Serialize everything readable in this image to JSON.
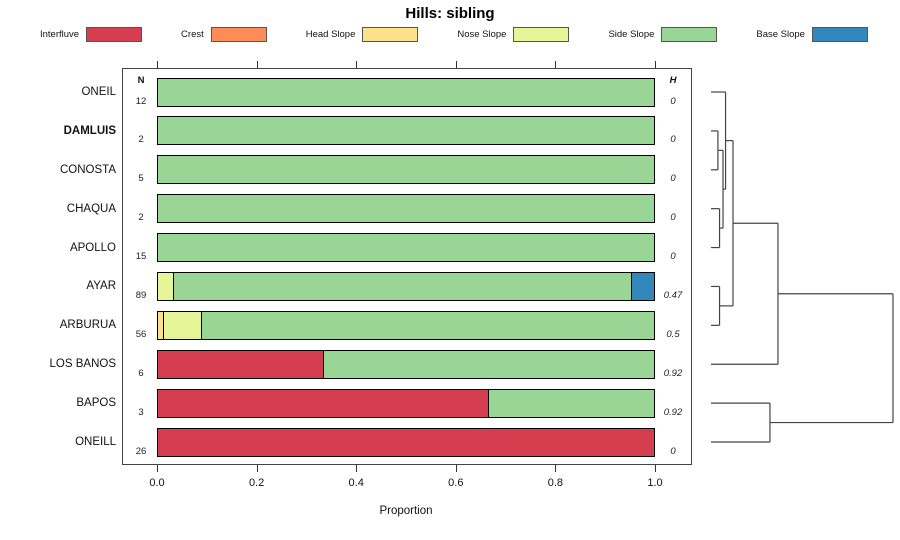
{
  "title": "Hills: sibling",
  "legend": [
    {
      "label": "Interfluve",
      "color": "#D53E4F"
    },
    {
      "label": "Crest",
      "color": "#FC8D59"
    },
    {
      "label": "Head Slope",
      "color": "#FEE08B"
    },
    {
      "label": "Nose Slope",
      "color": "#E6F598"
    },
    {
      "label": "Side Slope",
      "color": "#99D594"
    },
    {
      "label": "Base Slope",
      "color": "#3288BD"
    }
  ],
  "columns": {
    "n_header": "N",
    "h_header": "H"
  },
  "x_axis": {
    "label": "Proportion",
    "ticks": [
      "0.0",
      "0.2",
      "0.4",
      "0.6",
      "0.8",
      "1.0"
    ]
  },
  "chart_data": {
    "type": "bar",
    "subtype": "horizontal-stacked-proportion",
    "title": "Hills: sibling",
    "xlabel": "Proportion",
    "xlim": [
      0,
      1
    ],
    "grid": false,
    "legend_position": "top",
    "series_names": [
      "Interfluve",
      "Crest",
      "Head Slope",
      "Nose Slope",
      "Side Slope",
      "Base Slope"
    ],
    "categories": [
      "ONEIL",
      "DAMLUIS",
      "CONOSTA",
      "CHAQUA",
      "APOLLO",
      "AYAR",
      "ARBURUA",
      "LOS BANOS",
      "BAPOS",
      "ONEILL"
    ],
    "rows": [
      {
        "label": "ONEIL",
        "bold": false,
        "n": 12,
        "h": "0",
        "segments": [
          {
            "name": "Side Slope",
            "value": 1.0
          }
        ]
      },
      {
        "label": "DAMLUIS",
        "bold": true,
        "n": 2,
        "h": "0",
        "segments": [
          {
            "name": "Side Slope",
            "value": 1.0
          }
        ]
      },
      {
        "label": "CONOSTA",
        "bold": false,
        "n": 5,
        "h": "0",
        "segments": [
          {
            "name": "Side Slope",
            "value": 1.0
          }
        ]
      },
      {
        "label": "CHAQUA",
        "bold": false,
        "n": 2,
        "h": "0",
        "segments": [
          {
            "name": "Side Slope",
            "value": 1.0
          }
        ]
      },
      {
        "label": "APOLLO",
        "bold": false,
        "n": 15,
        "h": "0",
        "segments": [
          {
            "name": "Side Slope",
            "value": 1.0
          }
        ]
      },
      {
        "label": "AYAR",
        "bold": false,
        "n": 89,
        "h": "0.47",
        "segments": [
          {
            "name": "Nose Slope",
            "value": 0.032
          },
          {
            "name": "Side Slope",
            "value": 0.923
          },
          {
            "name": "Base Slope",
            "value": 0.045
          }
        ]
      },
      {
        "label": "ARBURUA",
        "bold": false,
        "n": 56,
        "h": "0.5",
        "segments": [
          {
            "name": "Head Slope",
            "value": 0.013
          },
          {
            "name": "Nose Slope",
            "value": 0.075
          },
          {
            "name": "Side Slope",
            "value": 0.912
          }
        ]
      },
      {
        "label": "LOS BANOS",
        "bold": false,
        "n": 6,
        "h": "0.92",
        "segments": [
          {
            "name": "Interfluve",
            "value": 0.334
          },
          {
            "name": "Side Slope",
            "value": 0.666
          }
        ]
      },
      {
        "label": "BAPOS",
        "bold": false,
        "n": 3,
        "h": "0.92",
        "segments": [
          {
            "name": "Interfluve",
            "value": 0.668
          },
          {
            "name": "Side Slope",
            "value": 0.332
          }
        ]
      },
      {
        "label": "ONEILL",
        "bold": false,
        "n": 26,
        "h": "0",
        "segments": [
          {
            "name": "Interfluve",
            "value": 1.0
          }
        ]
      }
    ],
    "dendrogram": {
      "leaf_order": [
        "ONEIL",
        "DAMLUIS",
        "CONOSTA",
        "CHAQUA",
        "APOLLO",
        "AYAR",
        "ARBURUA",
        "LOS BANOS",
        "BAPOS",
        "ONEILL"
      ],
      "merges": [
        {
          "id": "m1",
          "children": [
            "DAMLUIS",
            "CONOSTA"
          ],
          "height": 0.038
        },
        {
          "id": "m2",
          "children": [
            "CHAQUA",
            "APOLLO"
          ],
          "height": 0.047
        },
        {
          "id": "m3",
          "children": [
            "m1",
            "m2"
          ],
          "height": 0.066
        },
        {
          "id": "m4",
          "children": [
            "ONEIL",
            "m3"
          ],
          "height": 0.08
        },
        {
          "id": "m5",
          "children": [
            "AYAR",
            "ARBURUA"
          ],
          "height": 0.047
        },
        {
          "id": "m6",
          "children": [
            "m4",
            "m5"
          ],
          "height": 0.121
        },
        {
          "id": "m7",
          "children": [
            "m6",
            "LOS BANOS"
          ],
          "height": 0.368
        },
        {
          "id": "m8",
          "children": [
            "BAPOS",
            "ONEILL"
          ],
          "height": 0.324
        },
        {
          "id": "m9",
          "children": [
            "m7",
            "m8"
          ],
          "height": 1.0
        }
      ]
    }
  }
}
